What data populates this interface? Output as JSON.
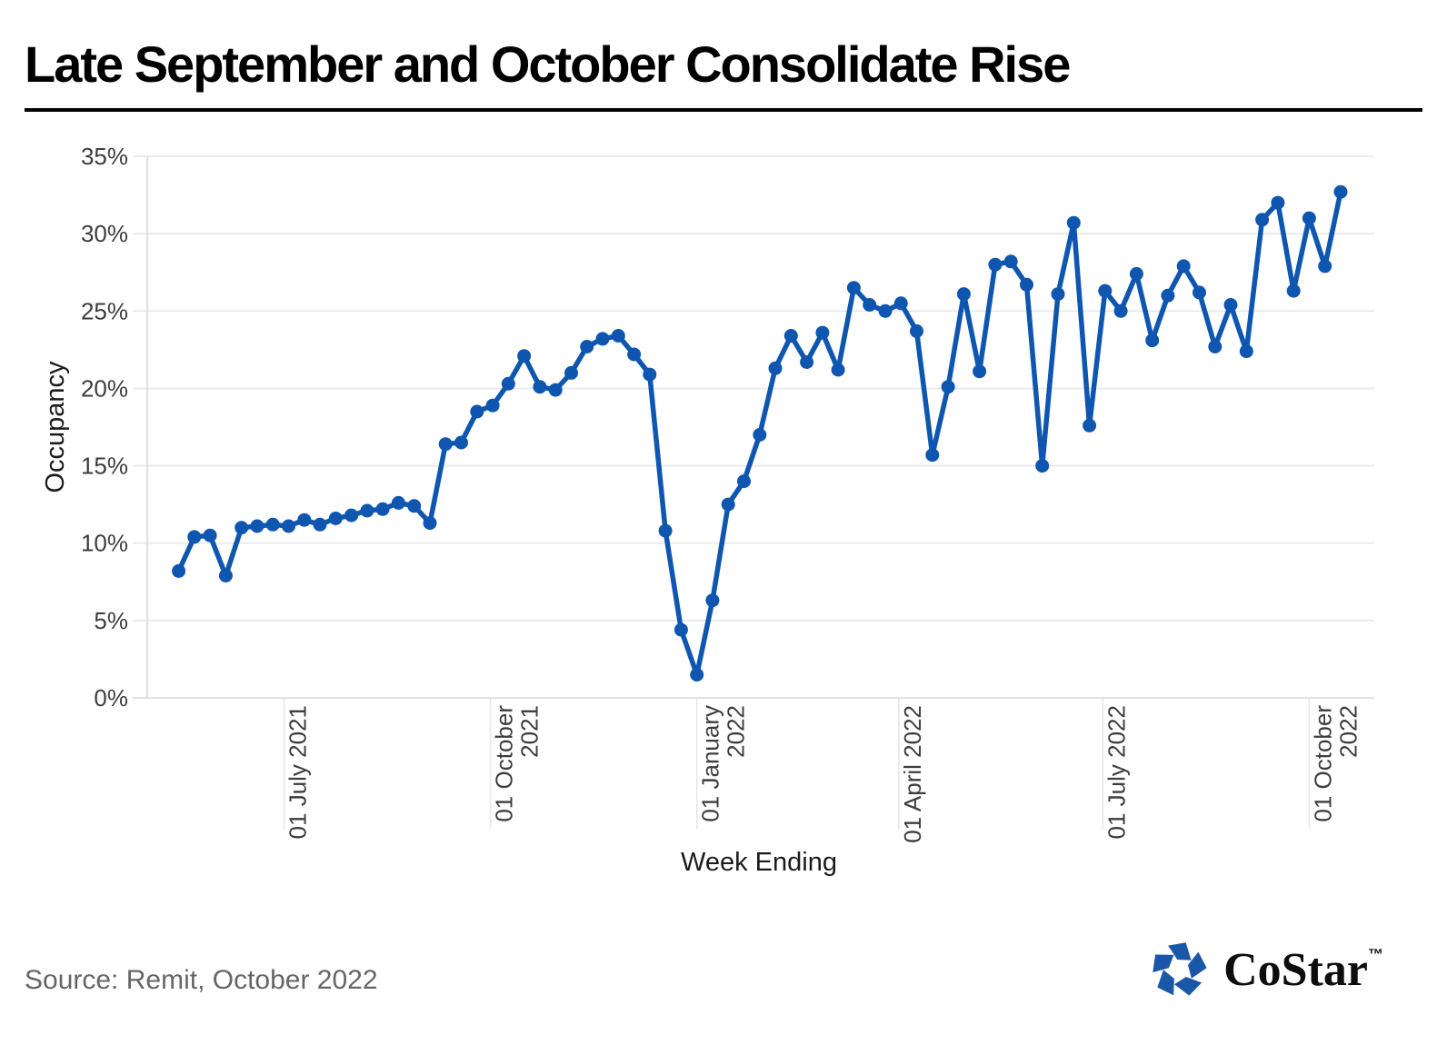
{
  "header": {
    "title": "Late September and October Consolidate Rise"
  },
  "footer": {
    "source": "Source: Remit, October 2022",
    "logo_text": "CoStar",
    "logo_tm": "™"
  },
  "colors": {
    "line": "#0e56b0",
    "logo_blue": "#1b57a8",
    "grid": "#e7e7e7",
    "axis": "#d9d9d9",
    "tick_text": "#3d3d3d",
    "source_text": "#666666"
  },
  "chart_data": {
    "type": "line",
    "title": "Late September and October Consolidate Rise",
    "xlabel": "Week Ending",
    "ylabel": "Occupancy",
    "ylim": [
      0,
      35
    ],
    "ytick_step": 5,
    "ytick_suffix": "%",
    "grid": "horizontal-only",
    "legend": "none",
    "marker": "circle",
    "x_domain": [
      "2021-05-01",
      "2022-10-30"
    ],
    "xticks": [
      {
        "date": "2021-07-01",
        "lines": [
          "01 July 2021"
        ]
      },
      {
        "date": "2021-10-01",
        "lines": [
          "01 October",
          "2021"
        ]
      },
      {
        "date": "2022-01-01",
        "lines": [
          "01 January",
          "2022"
        ]
      },
      {
        "date": "2022-04-01",
        "lines": [
          "01 April 2022"
        ]
      },
      {
        "date": "2022-07-01",
        "lines": [
          "01 July 2022"
        ]
      },
      {
        "date": "2022-10-01",
        "lines": [
          "01 October",
          "2022"
        ]
      }
    ],
    "series": [
      {
        "name": "Occupancy",
        "x": [
          "2021-05-15",
          "2021-05-22",
          "2021-05-29",
          "2021-06-05",
          "2021-06-12",
          "2021-06-19",
          "2021-06-26",
          "2021-07-03",
          "2021-07-10",
          "2021-07-17",
          "2021-07-24",
          "2021-07-31",
          "2021-08-07",
          "2021-08-14",
          "2021-08-21",
          "2021-08-28",
          "2021-09-04",
          "2021-09-11",
          "2021-09-18",
          "2021-09-25",
          "2021-10-02",
          "2021-10-09",
          "2021-10-16",
          "2021-10-23",
          "2021-10-30",
          "2021-11-06",
          "2021-11-13",
          "2021-11-20",
          "2021-11-27",
          "2021-12-04",
          "2021-12-11",
          "2021-12-18",
          "2021-12-25",
          "2022-01-01",
          "2022-01-08",
          "2022-01-15",
          "2022-01-22",
          "2022-01-29",
          "2022-02-05",
          "2022-02-12",
          "2022-02-19",
          "2022-02-26",
          "2022-03-05",
          "2022-03-12",
          "2022-03-19",
          "2022-03-26",
          "2022-04-02",
          "2022-04-09",
          "2022-04-16",
          "2022-04-23",
          "2022-04-30",
          "2022-05-07",
          "2022-05-14",
          "2022-05-21",
          "2022-05-28",
          "2022-06-04",
          "2022-06-11",
          "2022-06-18",
          "2022-06-25",
          "2022-07-02",
          "2022-07-09",
          "2022-07-16",
          "2022-07-23",
          "2022-07-30",
          "2022-08-06",
          "2022-08-13",
          "2022-08-20",
          "2022-08-27",
          "2022-09-03",
          "2022-09-10",
          "2022-09-17",
          "2022-09-24",
          "2022-10-01",
          "2022-10-08",
          "2022-10-15"
        ],
        "values": [
          8.2,
          10.4,
          10.5,
          7.9,
          11.0,
          11.1,
          11.2,
          11.1,
          11.5,
          11.2,
          11.6,
          11.8,
          12.1,
          12.2,
          12.6,
          12.4,
          11.3,
          16.4,
          16.5,
          18.5,
          18.9,
          20.3,
          22.1,
          20.1,
          19.9,
          21.0,
          22.7,
          23.2,
          23.4,
          22.2,
          20.9,
          10.8,
          4.4,
          1.5,
          6.3,
          12.5,
          14.0,
          17.0,
          21.3,
          23.4,
          21.7,
          23.6,
          21.2,
          26.5,
          25.4,
          25.0,
          25.5,
          23.7,
          15.7,
          20.1,
          26.1,
          21.1,
          28.0,
          28.2,
          26.7,
          15.0,
          26.1,
          30.7,
          17.6,
          26.3,
          25.0,
          27.4,
          23.1,
          26.0,
          27.9,
          26.2,
          22.7,
          25.4,
          22.4,
          30.9,
          32.0,
          26.3,
          31.0,
          27.9,
          32.7
        ]
      }
    ]
  }
}
